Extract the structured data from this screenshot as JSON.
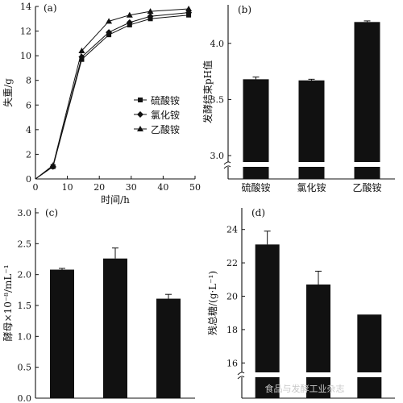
{
  "chart_data": [
    {
      "panel": "(a)",
      "type": "line",
      "xlabel": "时间/h",
      "ylabel": "失重/g",
      "xlim": [
        0,
        50
      ],
      "ylim": [
        0,
        14
      ],
      "xticks": [
        0,
        10,
        20,
        30,
        40,
        50
      ],
      "yticks": [
        0,
        2,
        4,
        6,
        8,
        10,
        12,
        14
      ],
      "legend_position": "right-middle",
      "series": [
        {
          "name": "硫酸铵",
          "marker": "square",
          "x": [
            0,
            5.5,
            14.5,
            23,
            29.5,
            36,
            48
          ],
          "y": [
            0,
            1.0,
            9.7,
            11.7,
            12.5,
            13.0,
            13.3
          ]
        },
        {
          "name": "氯化铵",
          "marker": "diamond",
          "x": [
            0,
            5.5,
            14.5,
            23,
            29.5,
            36,
            48
          ],
          "y": [
            0,
            1.0,
            9.9,
            11.9,
            12.7,
            13.2,
            13.5
          ]
        },
        {
          "name": "乙酸铵",
          "marker": "triangle",
          "x": [
            0,
            5.5,
            14.5,
            23,
            29.5,
            36,
            48
          ],
          "y": [
            0,
            1.1,
            10.4,
            12.8,
            13.3,
            13.6,
            13.8
          ]
        }
      ]
    },
    {
      "panel": "(b)",
      "type": "bar",
      "ylabel": "发酵结束pH值",
      "categories": [
        "硫酸铵",
        "氯化铵",
        "乙酸铵"
      ],
      "values": [
        3.68,
        3.67,
        4.19
      ],
      "errors": [
        0.02,
        0.01,
        0.01
      ],
      "ylim": [
        3.0,
        4.3
      ],
      "yticks": [
        3.0,
        3.5,
        4.0
      ],
      "axis_break": true
    },
    {
      "panel": "(c)",
      "type": "bar",
      "ylabel": "酵母×10⁻⁸/mL⁻¹",
      "categories": [
        "",
        "",
        ""
      ],
      "values": [
        2.08,
        2.26,
        1.61
      ],
      "errors": [
        0.02,
        0.17,
        0.07
      ],
      "ylim": [
        0,
        3.0
      ],
      "yticks": [
        0,
        0.5,
        1.0,
        1.5,
        2.0,
        2.5,
        3.0
      ]
    },
    {
      "panel": "(d)",
      "type": "bar",
      "ylabel": "残总糖/(g·L⁻¹)",
      "categories": [
        "",
        "",
        ""
      ],
      "values": [
        23.1,
        20.7,
        18.9
      ],
      "errors": [
        0.8,
        0.8,
        0.0
      ],
      "ylim": [
        15,
        25
      ],
      "yticks": [
        16,
        18,
        20,
        22,
        24
      ],
      "axis_break": true
    }
  ],
  "watermark": "食品与发酵工业杂志"
}
